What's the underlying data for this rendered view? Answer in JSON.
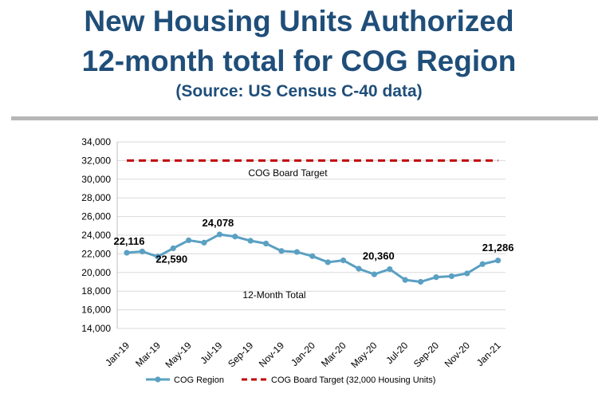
{
  "header": {
    "title_line1": "New Housing Units Authorized",
    "title_line2": "12-month total for COG Region",
    "source": "(Source: US Census C-40 data)"
  },
  "colors": {
    "title": "#1f4e79",
    "series": "#5aa0c2",
    "target": "#c00000",
    "grid": "#d9d9d9"
  },
  "chart_data": {
    "type": "line",
    "title": "",
    "xlabel": "",
    "ylabel": "",
    "ylim": [
      14000,
      34000
    ],
    "yticks": [
      14000,
      16000,
      18000,
      20000,
      22000,
      24000,
      26000,
      28000,
      30000,
      32000,
      34000
    ],
    "ytick_labels": [
      "14,000",
      "16,000",
      "18,000",
      "20,000",
      "22,000",
      "24,000",
      "26,000",
      "28,000",
      "30,000",
      "32,000",
      "34,000"
    ],
    "x": [
      "Jan-19",
      "Feb-19",
      "Mar-19",
      "Apr-19",
      "May-19",
      "Jun-19",
      "Jul-19",
      "Aug-19",
      "Sep-19",
      "Oct-19",
      "Nov-19",
      "Dec-19",
      "Jan-20",
      "Feb-20",
      "Mar-20",
      "Apr-20",
      "May-20",
      "Jun-20",
      "Jul-20",
      "Aug-20",
      "Sep-20",
      "Oct-20",
      "Nov-20",
      "Dec-20",
      "Jan-21"
    ],
    "xtick_labels": [
      "Jan-19",
      "Mar-19",
      "May-19",
      "Jul-19",
      "Sep-19",
      "Nov-19",
      "Jan-20",
      "Mar-20",
      "May-20",
      "Jul-20",
      "Sep-20",
      "Nov-20",
      "Jan-21"
    ],
    "series": [
      {
        "name": "COG Region",
        "values": [
          22116,
          22250,
          21700,
          22590,
          23450,
          23200,
          24078,
          23850,
          23400,
          23100,
          22300,
          22200,
          21750,
          21100,
          21300,
          20400,
          19800,
          20360,
          19200,
          19000,
          19500,
          19600,
          19900,
          20900,
          21286
        ]
      },
      {
        "name": "COG Board Target (32,000 Housing Units)",
        "values": [
          32000,
          32000,
          32000,
          32000,
          32000,
          32000,
          32000,
          32000,
          32000,
          32000,
          32000,
          32000,
          32000,
          32000,
          32000,
          32000,
          32000,
          32000,
          32000,
          32000,
          32000,
          32000,
          32000,
          32000,
          32000
        ]
      }
    ],
    "data_labels": [
      {
        "index": 0,
        "text": "22,116"
      },
      {
        "index": 3,
        "text": "22,590"
      },
      {
        "index": 6,
        "text": "24,078"
      },
      {
        "index": 17,
        "text": "20,360"
      },
      {
        "index": 24,
        "text": "21,286"
      }
    ],
    "annotations": {
      "target_label": "COG Board Target",
      "series_label": "12-Month Total"
    },
    "legend": {
      "position": "bottom",
      "entries": [
        "COG Region",
        "COG Board Target (32,000 Housing Units)"
      ]
    },
    "grid": true
  }
}
